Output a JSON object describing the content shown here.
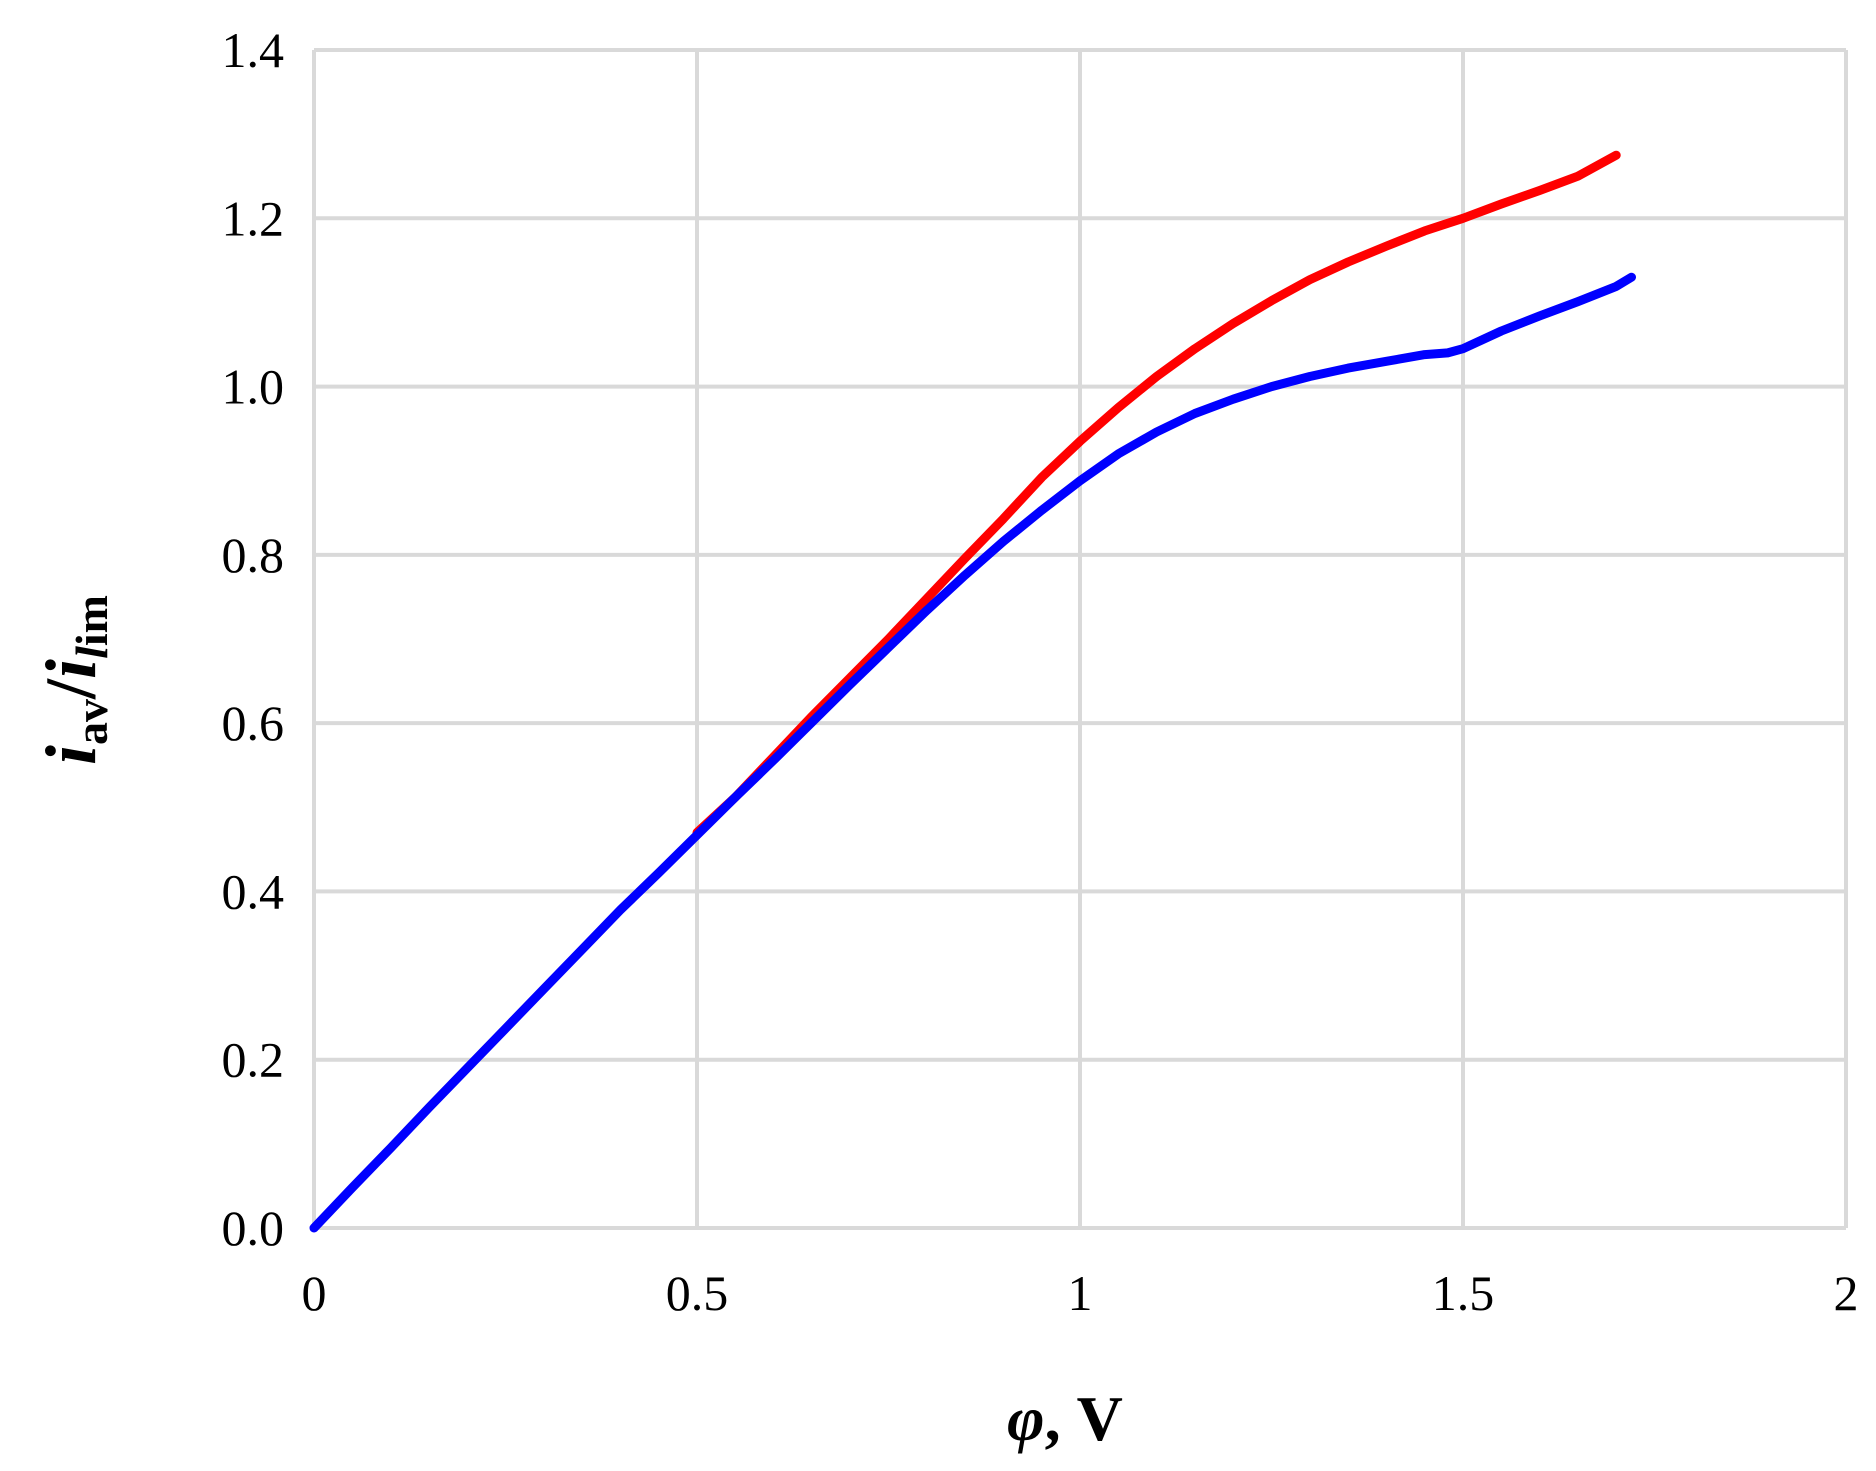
{
  "chart_data": {
    "type": "line",
    "title": "",
    "xlabel": {
      "main": "φ",
      "unit": ", V"
    },
    "ylabel": {
      "main1": "i",
      "sub1": "av",
      "slash": "/",
      "main2": "i",
      "sub2_italic": "l",
      "sub2_rest": "im"
    },
    "xlim": [
      0,
      2
    ],
    "ylim": [
      0,
      1.4
    ],
    "xticks": [
      "0",
      "0.5",
      "1",
      "1.5",
      "2"
    ],
    "yticks": [
      "0.0",
      "0.2",
      "0.4",
      "0.6",
      "0.8",
      "1.0",
      "1.2",
      "1.4"
    ],
    "grid": true,
    "legend": "none",
    "series": [
      {
        "color": "#ff0000",
        "x": [
          0.5,
          0.55,
          0.6,
          0.65,
          0.7,
          0.75,
          0.8,
          0.85,
          0.9,
          0.95,
          1.0,
          1.05,
          1.1,
          1.15,
          1.2,
          1.25,
          1.3,
          1.35,
          1.4,
          1.45,
          1.5,
          1.55,
          1.6,
          1.65,
          1.7
        ],
        "y": [
          0.47,
          0.512,
          0.56,
          0.608,
          0.654,
          0.7,
          0.748,
          0.796,
          0.843,
          0.892,
          0.935,
          0.975,
          1.012,
          1.045,
          1.075,
          1.102,
          1.127,
          1.148,
          1.167,
          1.185,
          1.2,
          1.217,
          1.233,
          1.25,
          1.275
        ]
      },
      {
        "color": "#0000ff",
        "x": [
          0.0,
          0.05,
          0.1,
          0.15,
          0.2,
          0.25,
          0.3,
          0.35,
          0.4,
          0.45,
          0.5,
          0.55,
          0.6,
          0.65,
          0.7,
          0.75,
          0.8,
          0.85,
          0.9,
          0.95,
          1.0,
          1.05,
          1.1,
          1.15,
          1.2,
          1.25,
          1.3,
          1.35,
          1.4,
          1.45,
          1.48,
          1.5,
          1.55,
          1.6,
          1.65,
          1.7,
          1.72
        ],
        "y": [
          0.0,
          0.048,
          0.095,
          0.143,
          0.19,
          0.237,
          0.284,
          0.331,
          0.378,
          0.422,
          0.467,
          0.512,
          0.556,
          0.601,
          0.646,
          0.69,
          0.734,
          0.776,
          0.816,
          0.853,
          0.888,
          0.92,
          0.946,
          0.968,
          0.985,
          1.0,
          1.012,
          1.022,
          1.03,
          1.038,
          1.04,
          1.045,
          1.066,
          1.084,
          1.101,
          1.119,
          1.13
        ]
      }
    ]
  }
}
